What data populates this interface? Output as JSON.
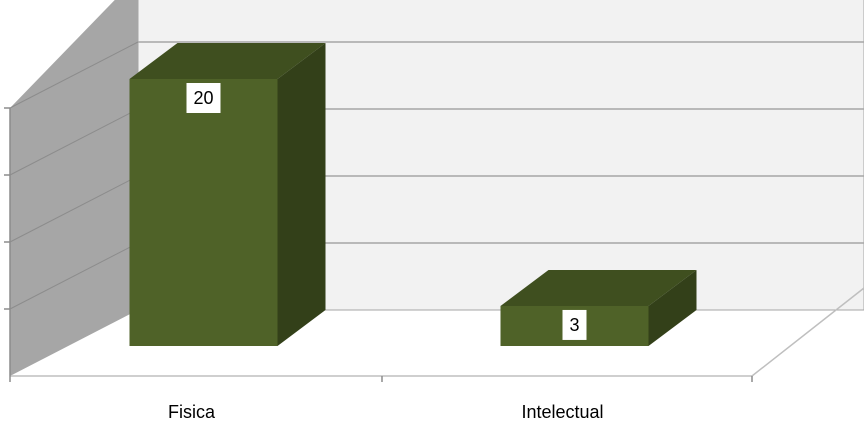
{
  "chart_data": {
    "type": "bar",
    "categories": [
      "Fisica",
      "Intelectual"
    ],
    "values": [
      20,
      3
    ],
    "title": "",
    "xlabel": "",
    "ylabel": "",
    "ylim": [
      0,
      25
    ],
    "grid": true,
    "legend": "none",
    "data_labels": [
      "20",
      "3"
    ],
    "colors": {
      "bar_front": "#4f6228",
      "bar_top": "#3f4f1f",
      "bar_side": "#334019",
      "back_wall": "#f2f2f2",
      "side_wall": "#a6a6a6",
      "grid": "#a6a6a6"
    }
  }
}
